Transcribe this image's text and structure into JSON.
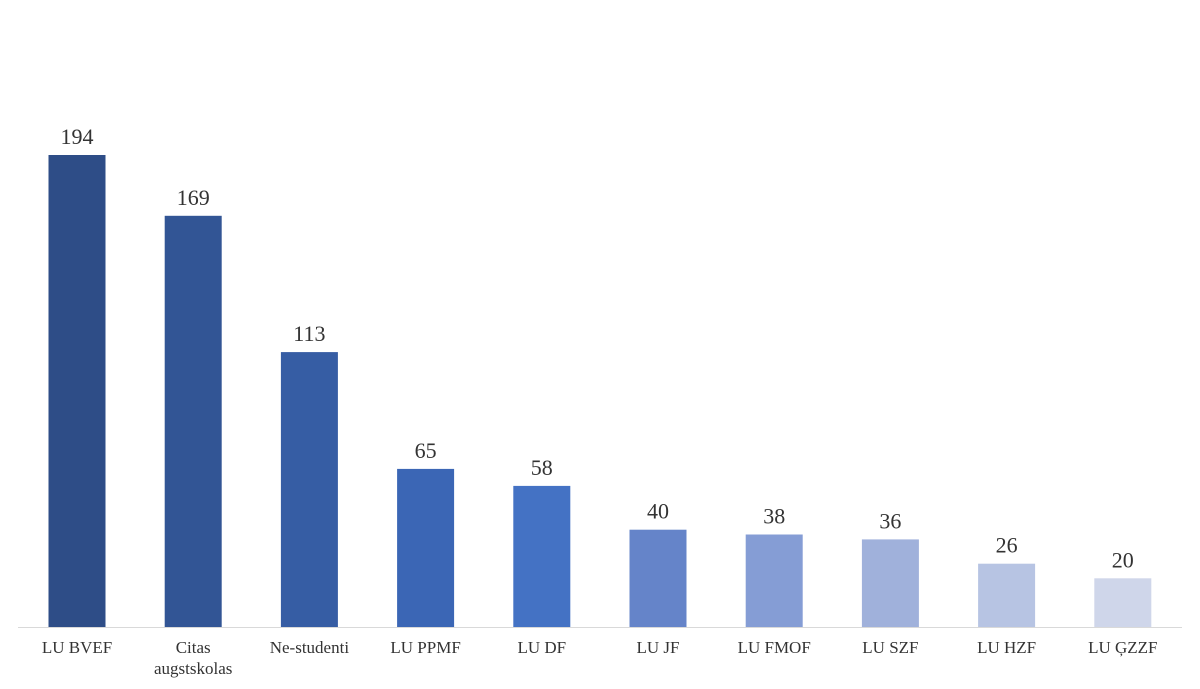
{
  "chart_data": {
    "type": "bar",
    "categories": [
      [
        "LU BVEF"
      ],
      [
        "Citas",
        "augstskolas"
      ],
      [
        "Ne-studenti"
      ],
      [
        "LU PPMF"
      ],
      [
        "LU DF"
      ],
      [
        "LU JF"
      ],
      [
        "LU FMOF"
      ],
      [
        "LU SZF"
      ],
      [
        "LU HZF"
      ],
      [
        "LU ĢZZF"
      ]
    ],
    "values": [
      194,
      169,
      113,
      65,
      58,
      40,
      38,
      36,
      26,
      20
    ],
    "colors": [
      "#2e4d87",
      "#325595",
      "#365da4",
      "#3b66b5",
      "#4472c4",
      "#6584c9",
      "#859dd5",
      "#a0b1db",
      "#b7c4e3",
      "#cfd6ea"
    ],
    "ylim": [
      0,
      194
    ],
    "grid": false,
    "legend": "none",
    "title": "",
    "xlabel": "",
    "ylabel": ""
  }
}
